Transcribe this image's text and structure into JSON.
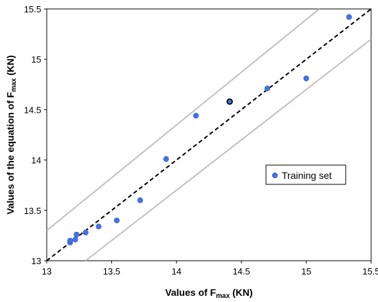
{
  "chart_data": {
    "type": "scatter",
    "xlabel": {
      "main": "Values of F",
      "sub": "max",
      "unit": " (KN)"
    },
    "ylabel": {
      "main": "Values of the equation of F",
      "sub": "max",
      "unit": " (KN)"
    },
    "xlim": [
      13,
      15.5
    ],
    "ylim": [
      13,
      15.5
    ],
    "xticks": [
      "13",
      "13.5",
      "14",
      "14.5",
      "15",
      "15.5"
    ],
    "yticks": [
      "13",
      "13.5",
      "14",
      "14.5",
      "15",
      "15.5"
    ],
    "grid": false,
    "legend": {
      "position": "right-middle",
      "label": "Training set"
    },
    "colors": {
      "point": "#4472e8",
      "point_stroke": "#2f55c4",
      "band": "#c0c0c0",
      "identity": "#000000"
    },
    "series": [
      {
        "name": "Training set",
        "points": [
          [
            13.18,
            13.18
          ],
          [
            13.18,
            13.2
          ],
          [
            13.22,
            13.21
          ],
          [
            13.23,
            13.26
          ],
          [
            13.3,
            13.28
          ],
          [
            13.4,
            13.34
          ],
          [
            13.54,
            13.4
          ],
          [
            13.72,
            13.6
          ],
          [
            13.92,
            14.01
          ],
          [
            14.15,
            14.44
          ],
          [
            14.41,
            14.58
          ],
          [
            14.7,
            14.71
          ],
          [
            15.0,
            14.81
          ],
          [
            15.33,
            15.42
          ]
        ],
        "highlighted_index": 10
      }
    ],
    "lines": [
      {
        "kind": "identity",
        "style": "dashed",
        "from": [
          13,
          13
        ],
        "to": [
          15.5,
          15.5
        ]
      },
      {
        "kind": "upper-band",
        "style": "solid",
        "from": [
          13,
          13.3
        ],
        "to": [
          15.1,
          15.5
        ]
      },
      {
        "kind": "lower-band",
        "style": "solid",
        "from": [
          13.3,
          13
        ],
        "to": [
          15.5,
          15.2
        ]
      }
    ]
  }
}
